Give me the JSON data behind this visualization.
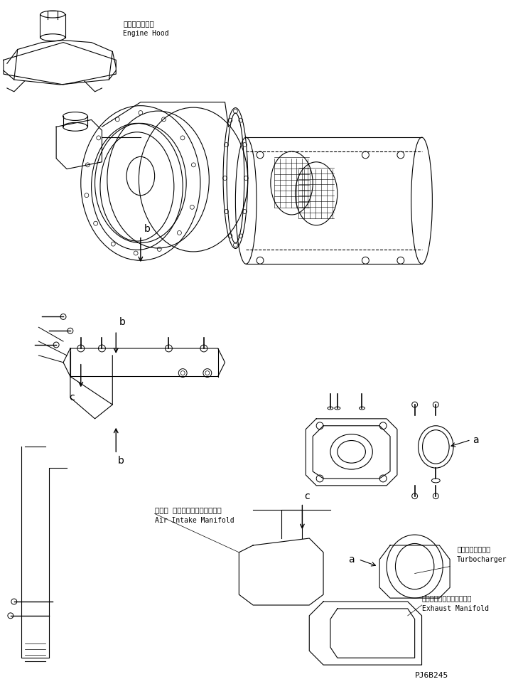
{
  "title": "",
  "background_color": "#ffffff",
  "line_color": "#000000",
  "text_color": "#000000",
  "figsize": [
    7.29,
    9.69
  ],
  "dpi": 100,
  "labels": {
    "engine_hood_jp": "エンジンフード",
    "engine_hood_en": "Engine Hood",
    "air_intake_jp": "エアー インテークマニホールド",
    "air_intake_en": "Air Intake Manifold",
    "turbo_jp": "ターボチャージャ",
    "turbo_en": "Turbocharger",
    "exhaust_jp": "エキゾーストマニホールド",
    "exhaust_en": "Exhaust Manifold",
    "part_num": "PJ6B245"
  }
}
